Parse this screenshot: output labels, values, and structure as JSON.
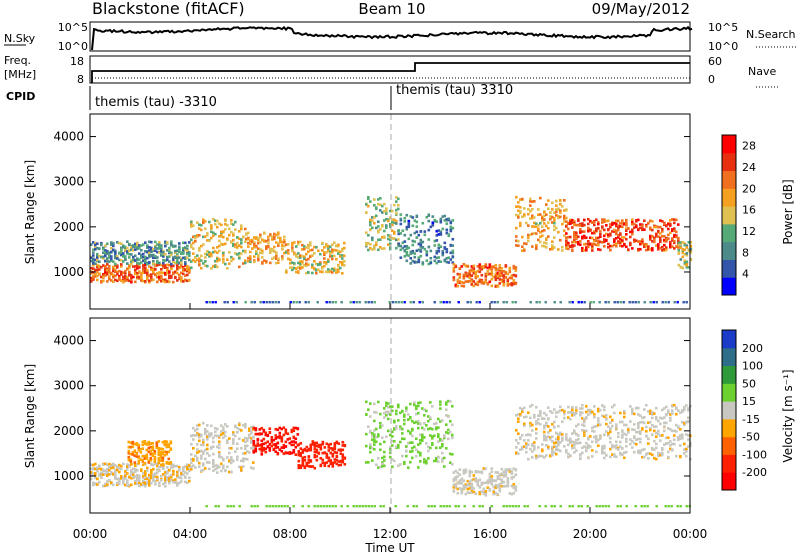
{
  "header": {
    "site": "Blackstone (fitACF)",
    "beam": "Beam 10",
    "date": "09/May/2012"
  },
  "status_panel": {
    "nsky_label": "N.Sky",
    "nsky_ticks": [
      "10^5",
      "10^0"
    ],
    "nsearch_label": "N.Search",
    "nsearch_ticks": [
      "10^5",
      "10^0"
    ],
    "freq_label": "Freq.",
    "freq_unit": "[MHz]",
    "freq_ticks": [
      "18",
      "8"
    ],
    "nave_label": "Nave",
    "nave_ticks": [
      "60",
      "0"
    ],
    "cpid_label": "CPID",
    "cpid_segments": [
      "themis (tau) -3310",
      "themis (tau) 3310"
    ]
  },
  "colors": {
    "power": [
      "#0000ff",
      "#3355aa",
      "#4d8a8a",
      "#55aa77",
      "#e0c050",
      "#f5a020",
      "#f07020",
      "#e83010",
      "#ff0000"
    ],
    "velocity": [
      "#1a3cc8",
      "#2e6e88",
      "#2f9a3a",
      "#6cd030",
      "#c8c8c0",
      "#ffa500",
      "#ff6000",
      "#ff2000",
      "#ff0000"
    ],
    "ground_scatter": "#c0c0b8"
  },
  "chart_data": [
    {
      "type": "heatmap",
      "title": "Power",
      "ylabel": "Slant Range [km]",
      "xlabel": "",
      "x_ticks": [
        "00:00",
        "04:00",
        "08:00",
        "12:00",
        "16:00",
        "20:00",
        "00:00"
      ],
      "xlim_hours": [
        0,
        24
      ],
      "ylim": [
        180,
        4500
      ],
      "y_ticks": [
        1000,
        2000,
        3000,
        4000
      ],
      "colorbar": {
        "label": "Power [dB]",
        "ticks": [
          4,
          8,
          12,
          16,
          20,
          24,
          28
        ],
        "range": [
          0,
          30
        ]
      },
      "echo_bands": [
        {
          "start": 0.0,
          "end": 4.0,
          "low": 800,
          "high": 1200,
          "value": 22
        },
        {
          "start": 0.0,
          "end": 4.0,
          "low": 1200,
          "high": 1700,
          "value": 10
        },
        {
          "start": 4.0,
          "end": 6.2,
          "low": 1100,
          "high": 2200,
          "value": 16
        },
        {
          "start": 6.2,
          "end": 7.8,
          "low": 1200,
          "high": 1900,
          "value": 18
        },
        {
          "start": 7.8,
          "end": 10.2,
          "low": 1000,
          "high": 1700,
          "value": 16
        },
        {
          "start": 11.0,
          "end": 12.3,
          "low": 1500,
          "high": 2700,
          "value": 14
        },
        {
          "start": 12.3,
          "end": 14.5,
          "low": 1200,
          "high": 2300,
          "value": 8
        },
        {
          "start": 14.5,
          "end": 17.0,
          "low": 700,
          "high": 1200,
          "value": 22
        },
        {
          "start": 17.0,
          "end": 19.0,
          "low": 1500,
          "high": 2700,
          "value": 18
        },
        {
          "start": 19.0,
          "end": 23.5,
          "low": 1500,
          "high": 2200,
          "value": 24
        },
        {
          "start": 23.5,
          "end": 24.0,
          "low": 1100,
          "high": 1700,
          "value": 14
        }
      ]
    },
    {
      "type": "heatmap",
      "title": "Velocity",
      "ylabel": "Slant Range [km]",
      "xlabel": "Time UT",
      "x_ticks": [
        "00:00",
        "04:00",
        "08:00",
        "12:00",
        "16:00",
        "20:00",
        "00:00"
      ],
      "xlim_hours": [
        0,
        24
      ],
      "ylim": [
        180,
        4500
      ],
      "y_ticks": [
        1000,
        2000,
        3000,
        4000
      ],
      "colorbar": {
        "label": "Velocity [m s⁻¹]",
        "ticks": [
          "200",
          "100",
          "50",
          "15",
          "-15",
          "-50",
          "-100",
          "-200"
        ]
      },
      "echo_bands": [
        {
          "start": 0.0,
          "end": 4.0,
          "low": 800,
          "high": 1300,
          "value": -10
        },
        {
          "start": 1.5,
          "end": 3.2,
          "low": 1300,
          "high": 1800,
          "value": -40
        },
        {
          "start": 4.0,
          "end": 6.5,
          "low": 1100,
          "high": 2200,
          "value": -5
        },
        {
          "start": 6.5,
          "end": 8.3,
          "low": 1500,
          "high": 2100,
          "value": -200
        },
        {
          "start": 8.3,
          "end": 10.2,
          "low": 1200,
          "high": 1800,
          "value": -180
        },
        {
          "start": 11.0,
          "end": 14.5,
          "low": 1200,
          "high": 2700,
          "value": 20
        },
        {
          "start": 14.5,
          "end": 17.0,
          "low": 600,
          "high": 1200,
          "value": -5
        },
        {
          "start": 17.0,
          "end": 24.0,
          "low": 1400,
          "high": 2600,
          "value": -5
        }
      ]
    }
  ]
}
